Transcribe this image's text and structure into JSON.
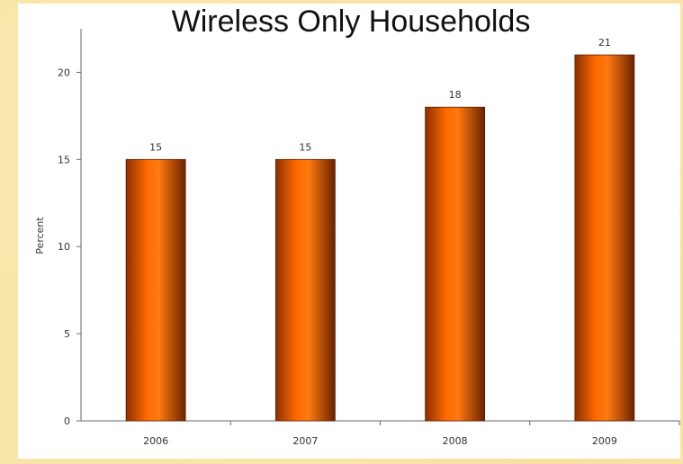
{
  "chart_data": {
    "type": "bar",
    "title": "Wireless Only Households",
    "categories": [
      "2006",
      "2007",
      "2008",
      "2009"
    ],
    "values": [
      15,
      15,
      18,
      21
    ],
    "data_labels": [
      "15",
      "15",
      "18",
      "21"
    ],
    "xlabel": "",
    "ylabel": "Percent",
    "ylim": [
      0,
      22.5
    ],
    "yticks": [
      "0",
      "5",
      "10",
      "15",
      "20"
    ],
    "grid": false,
    "legend": "none"
  },
  "colors": {
    "bar_mid": "#ff6a00",
    "bar_dark": "#7a2a00",
    "axis": "#666666",
    "background": "#f7e4a8"
  }
}
